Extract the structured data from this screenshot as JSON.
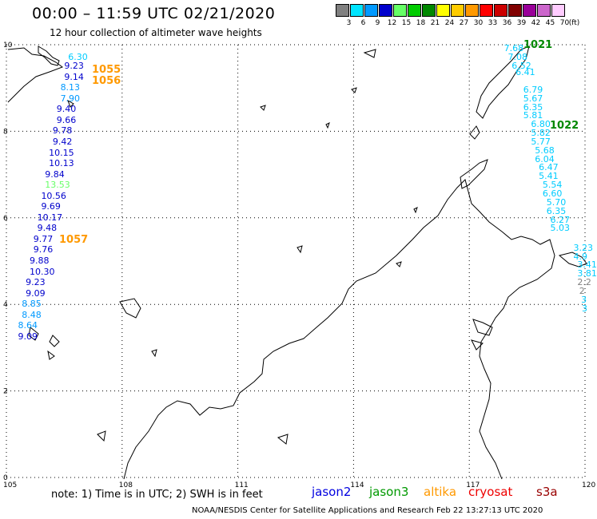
{
  "header": {
    "title": "00:00 – 11:59 UTC 02/21/2020",
    "subtitle": "12 hour collection of altimeter wave heights"
  },
  "scale": {
    "unit": "(ft)",
    "bins": [
      {
        "label": "3",
        "color": "#808080"
      },
      {
        "label": "6",
        "color": "#00e5ff"
      },
      {
        "label": "9",
        "color": "#0099ff"
      },
      {
        "label": "12",
        "color": "#0000cc"
      },
      {
        "label": "15",
        "color": "#66ff66"
      },
      {
        "label": "18",
        "color": "#00cc00"
      },
      {
        "label": "21",
        "color": "#008800"
      },
      {
        "label": "24",
        "color": "#ffff00"
      },
      {
        "label": "27",
        "color": "#ffcc00"
      },
      {
        "label": "30",
        "color": "#ff9900"
      },
      {
        "label": "33",
        "color": "#ff0000"
      },
      {
        "label": "36",
        "color": "#cc0000"
      },
      {
        "label": "39",
        "color": "#800000"
      },
      {
        "label": "42",
        "color": "#990099"
      },
      {
        "label": "45",
        "color": "#cc66cc"
      },
      {
        "label": "70",
        "color": "#ffccff"
      }
    ]
  },
  "axes": {
    "lon_labels": [
      "105",
      "108",
      "111",
      "114",
      "117",
      "120"
    ],
    "lat_labels": [
      "0",
      "2",
      "4",
      "6",
      "8",
      "10"
    ],
    "lon_range": [
      105,
      120
    ],
    "lat_range": [
      0,
      10
    ]
  },
  "orbits": [
    {
      "label": "1055",
      "color": "#ff9900"
    },
    {
      "label": "1056",
      "color": "#ff9900"
    },
    {
      "label": "1057",
      "color": "#ff9900"
    },
    {
      "label": "1021",
      "color": "#008800"
    },
    {
      "label": "1022",
      "color": "#008800"
    }
  ],
  "chart_data": {
    "type": "scatter",
    "tracks": [
      {
        "orbit": "1055/1056/1057",
        "labels": [
          {
            "lon": 106.6,
            "lat": 9.7,
            "value": "6.30",
            "color": "#00ccff"
          },
          {
            "lon": 106.5,
            "lat": 9.5,
            "value": "9.23",
            "color": "#0000cc"
          },
          {
            "lon": 106.5,
            "lat": 9.25,
            "value": "9.14",
            "color": "#0000cc"
          },
          {
            "lon": 106.4,
            "lat": 9.0,
            "value": "8.13",
            "color": "#0099ff"
          },
          {
            "lon": 106.4,
            "lat": 8.75,
            "value": "7.90",
            "color": "#0099ff"
          },
          {
            "lon": 106.3,
            "lat": 8.5,
            "value": "9.40",
            "color": "#0000cc"
          },
          {
            "lon": 106.3,
            "lat": 8.25,
            "value": "9.66",
            "color": "#0000cc"
          },
          {
            "lon": 106.2,
            "lat": 8.0,
            "value": "9.78",
            "color": "#0000cc"
          },
          {
            "lon": 106.2,
            "lat": 7.75,
            "value": "9.42",
            "color": "#0000cc"
          },
          {
            "lon": 106.1,
            "lat": 7.5,
            "value": "10.15",
            "color": "#0000cc"
          },
          {
            "lon": 106.1,
            "lat": 7.25,
            "value": "10.13",
            "color": "#0000cc"
          },
          {
            "lon": 106.0,
            "lat": 7.0,
            "value": "9.84",
            "color": "#0000cc"
          },
          {
            "lon": 106.0,
            "lat": 6.75,
            "value": "13.53",
            "color": "#66ff66"
          },
          {
            "lon": 105.9,
            "lat": 6.5,
            "value": "10.56",
            "color": "#0000cc"
          },
          {
            "lon": 105.9,
            "lat": 6.25,
            "value": "9.69",
            "color": "#0000cc"
          },
          {
            "lon": 105.8,
            "lat": 6.0,
            "value": "10.17",
            "color": "#0000cc"
          },
          {
            "lon": 105.8,
            "lat": 5.75,
            "value": "9.48",
            "color": "#0000cc"
          },
          {
            "lon": 105.7,
            "lat": 5.5,
            "value": "9.77",
            "color": "#0000cc"
          },
          {
            "lon": 105.7,
            "lat": 5.25,
            "value": "9.76",
            "color": "#0000cc"
          },
          {
            "lon": 105.6,
            "lat": 5.0,
            "value": "9.88",
            "color": "#0000cc"
          },
          {
            "lon": 105.6,
            "lat": 4.75,
            "value": "10.30",
            "color": "#0000cc"
          },
          {
            "lon": 105.5,
            "lat": 4.5,
            "value": "9.23",
            "color": "#0000cc"
          },
          {
            "lon": 105.5,
            "lat": 4.25,
            "value": "9.09",
            "color": "#0000cc"
          },
          {
            "lon": 105.4,
            "lat": 4.0,
            "value": "8.85",
            "color": "#0099ff"
          },
          {
            "lon": 105.4,
            "lat": 3.75,
            "value": "8.48",
            "color": "#0099ff"
          },
          {
            "lon": 105.3,
            "lat": 3.5,
            "value": "8.64",
            "color": "#0099ff"
          },
          {
            "lon": 105.3,
            "lat": 3.25,
            "value": "9.09",
            "color": "#0000cc"
          }
        ]
      },
      {
        "orbit": "1021/1022",
        "labels": [
          {
            "lon": 117.9,
            "lat": 9.9,
            "value": "7.68",
            "color": "#00ccff"
          },
          {
            "lon": 118.0,
            "lat": 9.7,
            "value": "7.08",
            "color": "#00ccff"
          },
          {
            "lon": 118.1,
            "lat": 9.5,
            "value": "6.52",
            "color": "#00ccff"
          },
          {
            "lon": 118.2,
            "lat": 9.35,
            "value": "6.41",
            "color": "#00ccff"
          },
          {
            "lon": 118.4,
            "lat": 8.95,
            "value": "6.79",
            "color": "#00ccff"
          },
          {
            "lon": 118.4,
            "lat": 8.75,
            "value": "5.67",
            "color": "#00ccff"
          },
          {
            "lon": 118.4,
            "lat": 8.55,
            "value": "6.35",
            "color": "#00ccff"
          },
          {
            "lon": 118.4,
            "lat": 8.35,
            "value": "5.81",
            "color": "#00ccff"
          },
          {
            "lon": 118.6,
            "lat": 8.15,
            "value": "6.80",
            "color": "#00ccff"
          },
          {
            "lon": 118.6,
            "lat": 7.95,
            "value": "5.82",
            "color": "#00ccff"
          },
          {
            "lon": 118.6,
            "lat": 7.75,
            "value": "5.77",
            "color": "#00ccff"
          },
          {
            "lon": 118.7,
            "lat": 7.55,
            "value": "5.68",
            "color": "#00ccff"
          },
          {
            "lon": 118.7,
            "lat": 7.35,
            "value": "6.04",
            "color": "#00ccff"
          },
          {
            "lon": 118.8,
            "lat": 7.15,
            "value": "6.47",
            "color": "#00ccff"
          },
          {
            "lon": 118.8,
            "lat": 6.95,
            "value": "5.41",
            "color": "#00ccff"
          },
          {
            "lon": 118.9,
            "lat": 6.75,
            "value": "5.54",
            "color": "#00ccff"
          },
          {
            "lon": 118.9,
            "lat": 6.55,
            "value": "6.60",
            "color": "#00ccff"
          },
          {
            "lon": 119.0,
            "lat": 6.35,
            "value": "5.70",
            "color": "#00ccff"
          },
          {
            "lon": 119.0,
            "lat": 6.15,
            "value": "6.35",
            "color": "#00ccff"
          },
          {
            "lon": 119.1,
            "lat": 5.95,
            "value": "6.27",
            "color": "#00ccff"
          },
          {
            "lon": 119.1,
            "lat": 5.75,
            "value": "5.03",
            "color": "#00ccff"
          },
          {
            "lon": 119.7,
            "lat": 5.3,
            "value": "3.23",
            "color": "#00ccff"
          },
          {
            "lon": 119.7,
            "lat": 5.1,
            "value": "4.9",
            "color": "#00ccff"
          },
          {
            "lon": 119.8,
            "lat": 4.9,
            "value": "3.41",
            "color": "#00ccff"
          },
          {
            "lon": 119.8,
            "lat": 4.7,
            "value": "3.81",
            "color": "#00ccff"
          },
          {
            "lon": 119.8,
            "lat": 4.5,
            "value": "2.2",
            "color": "#808080"
          },
          {
            "lon": 119.85,
            "lat": 4.3,
            "value": "2",
            "color": "#808080"
          },
          {
            "lon": 119.9,
            "lat": 4.1,
            "value": "3",
            "color": "#00ccff"
          },
          {
            "lon": 119.95,
            "lat": 3.9,
            "value": "3",
            "color": "#00ccff"
          }
        ]
      }
    ]
  },
  "satellites": [
    {
      "name": "jason2",
      "color": "#0000e0"
    },
    {
      "name": "jason3",
      "color": "#009900"
    },
    {
      "name": "altika",
      "color": "#ff9900"
    },
    {
      "name": "cryosat",
      "color": "#ee0000"
    },
    {
      "name": "s3a",
      "color": "#990000"
    }
  ],
  "footer": {
    "note": "note: 1) Time is in UTC; 2) SWH is in feet",
    "credit": "NOAA/NESDIS Center for Satellite Applications and Research   Feb 22 13:27:13 UTC 2020"
  }
}
